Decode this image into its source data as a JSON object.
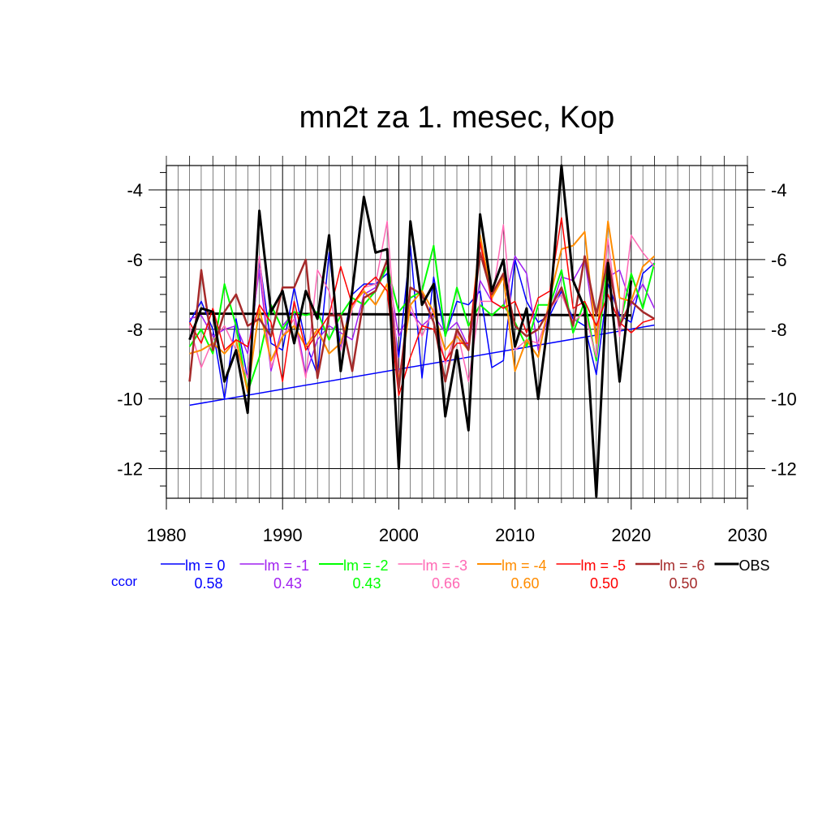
{
  "chart_data": {
    "type": "line",
    "title": "mn2t za 1. mesec, Kop",
    "xlabel": "",
    "ylabel": "",
    "xlim": [
      1980,
      2030
    ],
    "ylim": [
      -12.85,
      -3.3
    ],
    "x_ticks": [
      1980,
      1990,
      2000,
      2010,
      2020,
      2030
    ],
    "y_ticks": [
      -4,
      -6,
      -8,
      -10,
      -12
    ],
    "grid": true,
    "x": [
      1982,
      1983,
      1984,
      1985,
      1986,
      1987,
      1988,
      1989,
      1990,
      1991,
      1992,
      1993,
      1994,
      1995,
      1996,
      1997,
      1998,
      1999,
      2000,
      2001,
      2002,
      2003,
      2004,
      2005,
      2006,
      2007,
      2008,
      2009,
      2010,
      2011,
      2012,
      2013,
      2014,
      2015,
      2016,
      2017,
      2018,
      2019,
      2020,
      2021,
      2022
    ],
    "series": [
      {
        "name": "lm = 0",
        "color": "#0000ff",
        "width": 1.5,
        "values": [
          -7.8,
          -7.2,
          -8.0,
          -10.0,
          -7.7,
          -9.4,
          -6.0,
          -8.4,
          -8.6,
          -6.8,
          -8.4,
          -9.3,
          -5.8,
          -8.6,
          -7.0,
          -6.7,
          -6.7,
          -6.4,
          -8.8,
          -5.6,
          -9.4,
          -6.5,
          -8.2,
          -7.2,
          -7.3,
          -6.9,
          -9.1,
          -8.9,
          -6.0,
          -7.2,
          -7.8,
          -7.6,
          -6.9,
          -7.7,
          -7.9,
          -9.3,
          -6.7,
          -7.6,
          -7.8,
          -6.4,
          -6.1
        ]
      },
      {
        "name": "lm = -1",
        "color": "#a020f0",
        "width": 1.5,
        "values": [
          -7.7,
          -7.6,
          -8.2,
          -8.0,
          -7.9,
          -8.7,
          -6.3,
          -9.2,
          -7.9,
          -7.5,
          -9.3,
          -8.3,
          -7.9,
          -8.1,
          -8.3,
          -7.0,
          -6.8,
          -6.2,
          -8.2,
          -7.5,
          -7.9,
          -7.6,
          -8.1,
          -7.8,
          -8.5,
          -6.6,
          -7.2,
          -7.4,
          -5.9,
          -6.4,
          -8.6,
          -7.5,
          -6.5,
          -6.6,
          -6.0,
          -8.2,
          -6.5,
          -6.3,
          -7.3,
          -6.7,
          -7.4
        ]
      },
      {
        "name": "lm = -2",
        "color": "#00ff00",
        "width": 2,
        "values": [
          -8.5,
          -8.0,
          -8.7,
          -6.7,
          -7.9,
          -9.8,
          -8.8,
          -7.3,
          -8.0,
          -7.5,
          -7.6,
          -7.5,
          -8.3,
          -7.6,
          -7.1,
          -7.3,
          -6.9,
          -6.2,
          -7.5,
          -7.1,
          -6.9,
          -5.6,
          -8.2,
          -6.8,
          -7.9,
          -7.3,
          -7.6,
          -7.3,
          -7.8,
          -8.5,
          -7.3,
          -7.3,
          -6.3,
          -8.1,
          -7.2,
          -8.9,
          -6.0,
          -7.9,
          -6.4,
          -7.4,
          -6.1
        ]
      },
      {
        "name": "lm = -3",
        "color": "#ff69b4",
        "width": 1.5,
        "values": [
          -7.9,
          -9.1,
          -8.3,
          -7.9,
          -8.6,
          -9.4,
          -5.9,
          -9.1,
          -8.2,
          -7.7,
          -9.4,
          -6.3,
          -6.9,
          -8.6,
          -7.4,
          -6.8,
          -6.7,
          -4.9,
          -9.4,
          -7.3,
          -8.2,
          -7.4,
          -9.0,
          -8.0,
          -9.5,
          -7.2,
          -7.2,
          -5.0,
          -8.6,
          -8.3,
          -8.4,
          -7.4,
          -7.0,
          -7.8,
          -7.5,
          -8.8,
          -5.4,
          -8.2,
          -5.3,
          -5.8,
          -6.2
        ]
      },
      {
        "name": "lm = -4",
        "color": "#ff8c00",
        "width": 2,
        "values": [
          -8.7,
          -8.6,
          -8.4,
          -8.7,
          -8.3,
          -9.8,
          -7.4,
          -8.9,
          -8.2,
          -7.9,
          -8.5,
          -8.0,
          -8.7,
          -8.4,
          -7.3,
          -6.9,
          -7.3,
          -6.7,
          -9.5,
          -7.3,
          -6.9,
          -7.5,
          -8.6,
          -8.2,
          -8.6,
          -5.3,
          -7.1,
          -6.5,
          -9.2,
          -8.3,
          -8.8,
          -7.1,
          -5.7,
          -5.6,
          -5.2,
          -8.4,
          -4.9,
          -7.1,
          -7.2,
          -6.2,
          -5.9
        ]
      },
      {
        "name": "lm = -5",
        "color": "#ff0000",
        "width": 1.5,
        "values": [
          -7.8,
          -8.4,
          -7.4,
          -8.6,
          -8.3,
          -8.5,
          -7.3,
          -7.8,
          -9.5,
          -7.2,
          -8.6,
          -8.1,
          -7.6,
          -6.2,
          -7.3,
          -6.8,
          -6.5,
          -6.9,
          -9.9,
          -8.8,
          -7.9,
          -8.0,
          -8.9,
          -8.4,
          -8.4,
          -5.5,
          -7.2,
          -7.4,
          -7.2,
          -8.1,
          -7.1,
          -6.9,
          -4.8,
          -7.4,
          -7.2,
          -7.9,
          -7.0,
          -7.8,
          -8.1,
          -7.8,
          -7.7
        ]
      },
      {
        "name": "lm = -6",
        "color": "#a52a2a",
        "width": 2.5,
        "values": [
          -9.5,
          -6.3,
          -8.6,
          -7.5,
          -7.0,
          -7.9,
          -7.7,
          -8.2,
          -6.8,
          -6.8,
          -6.0,
          -9.4,
          -7.6,
          -7.6,
          -9.2,
          -7.1,
          -6.9,
          -6.0,
          -9.7,
          -6.8,
          -7.0,
          -7.8,
          -9.5,
          -8.0,
          -8.6,
          -5.8,
          -7.0,
          -6.4,
          -7.9,
          -8.2,
          -8.0,
          -7.4,
          -6.8,
          -7.9,
          -5.9,
          -7.6,
          -6.0,
          -7.9,
          -7.2,
          -7.5,
          -7.7
        ]
      },
      {
        "name": "OBS",
        "color": "#000000",
        "width": 3,
        "values": [
          -8.3,
          -7.4,
          -7.5,
          -9.5,
          -8.6,
          -10.4,
          -4.6,
          -7.5,
          -6.9,
          -8.4,
          -6.9,
          -7.7,
          -5.3,
          -9.2,
          -6.9,
          -4.2,
          -5.8,
          -5.7,
          -12.0,
          -4.9,
          -7.3,
          -6.7,
          -10.5,
          -8.6,
          -10.9,
          -4.7,
          -6.9,
          -6.0,
          -8.5,
          -7.4,
          -10.0,
          -7.4,
          -3.3,
          -6.6,
          -7.4,
          -12.8,
          -6.1,
          -9.5,
          -6.6,
          null,
          null
        ]
      }
    ],
    "trend_lines": [
      {
        "color": "#0000ff",
        "width": 1.5,
        "points": [
          [
            1982,
            -10.18
          ],
          [
            2022,
            -7.88
          ]
        ]
      },
      {
        "color": "#000000",
        "width": 3,
        "points": [
          [
            1982,
            -7.55
          ],
          [
            2020,
            -7.6
          ]
        ]
      }
    ],
    "legend": {
      "placement": "bottom",
      "ccor_label": "ccor",
      "ccor_label_color": "#0000ff",
      "entries": [
        {
          "label": "lm = 0",
          "color": "#0000ff",
          "ccor": "0.58"
        },
        {
          "label": "lm = -1",
          "color": "#a020f0",
          "ccor": "0.43"
        },
        {
          "label": "lm = -2",
          "color": "#00ff00",
          "ccor": "0.43"
        },
        {
          "label": "lm = -3",
          "color": "#ff69b4",
          "ccor": "0.66"
        },
        {
          "label": "lm = -4",
          "color": "#ff8c00",
          "ccor": "0.60"
        },
        {
          "label": "lm = -5",
          "color": "#ff0000",
          "ccor": "0.50"
        },
        {
          "label": "lm = -6",
          "color": "#a52a2a",
          "ccor": "0.50"
        },
        {
          "label": "OBS",
          "color": "#000000",
          "ccor": null
        }
      ]
    }
  }
}
